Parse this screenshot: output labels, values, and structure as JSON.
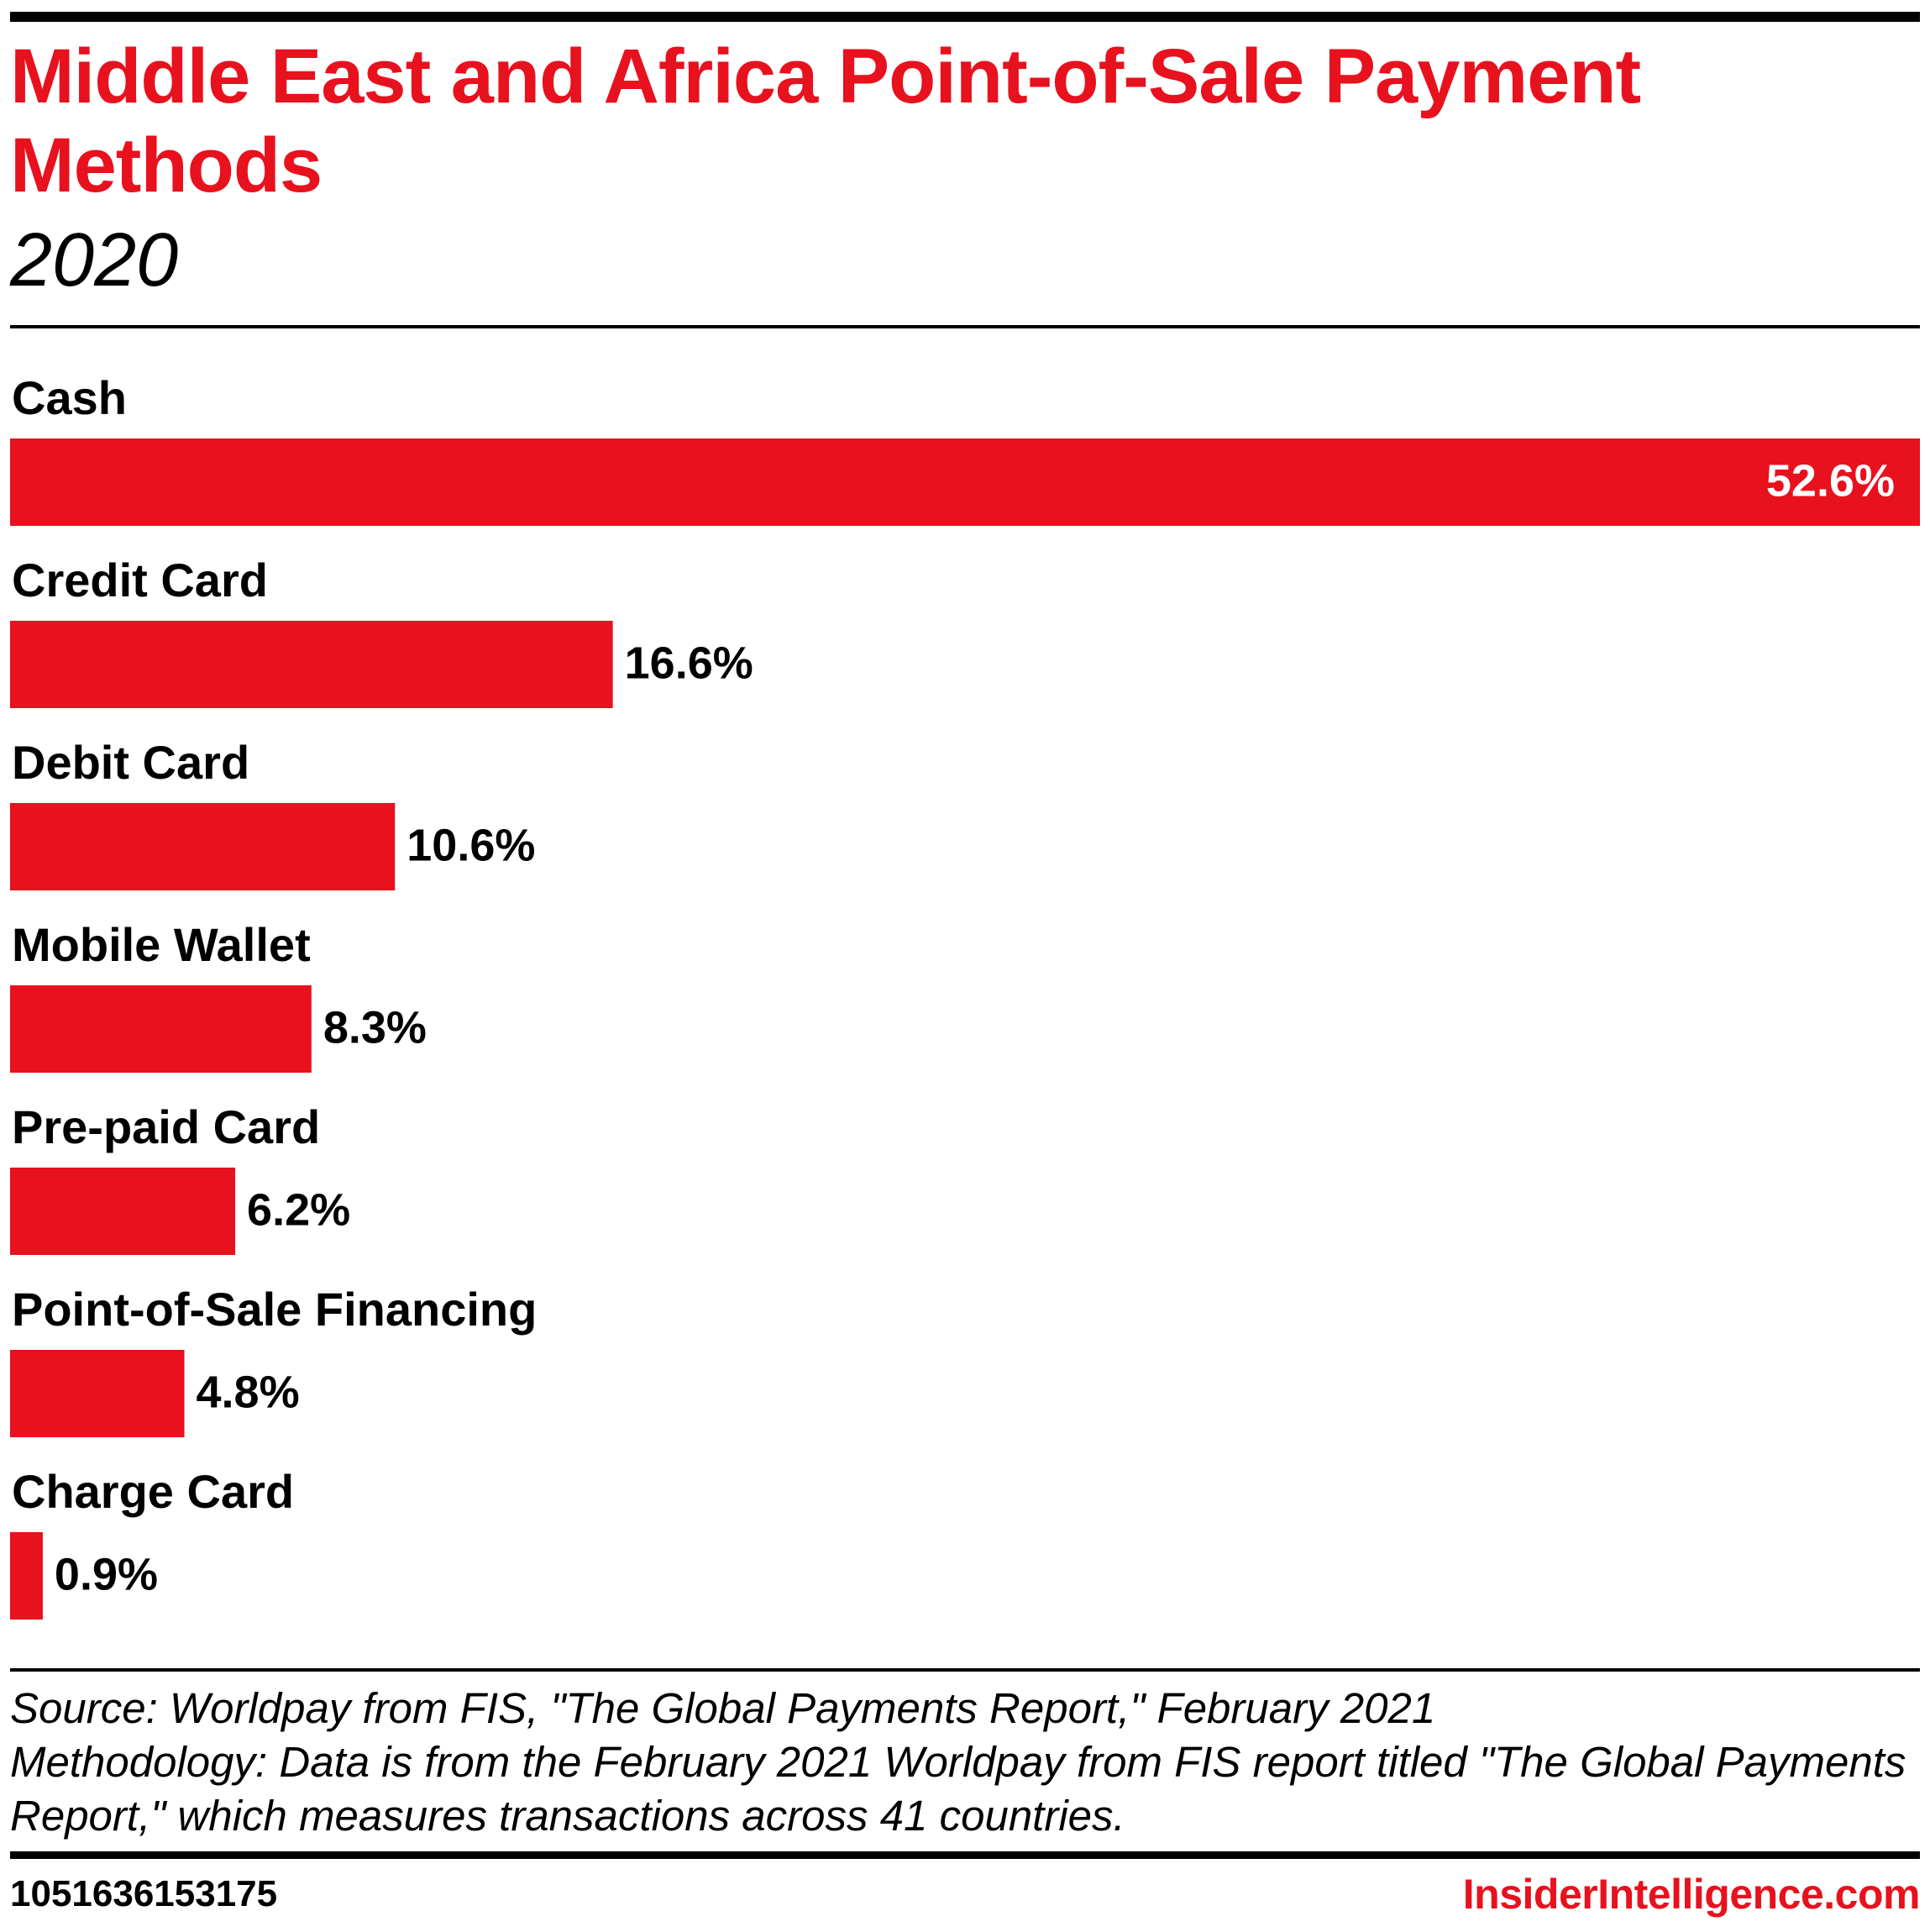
{
  "header": {
    "title": "Middle East and Africa Point-of-Sale Payment Methods",
    "subtitle": "2020"
  },
  "chart_data": {
    "type": "bar",
    "orientation": "horizontal",
    "categories": [
      "Cash",
      "Credit Card",
      "Debit Card",
      "Mobile Wallet",
      "Pre-paid Card",
      "Point-of-Sale Financing",
      "Charge Card"
    ],
    "values": [
      52.6,
      16.6,
      10.6,
      8.3,
      6.2,
      4.8,
      0.9
    ],
    "value_labels": [
      "52.6%",
      "16.6%",
      "10.6%",
      "8.3%",
      "6.2%",
      "4.8%",
      "0.9%"
    ],
    "unit": "%",
    "bar_color": "#e8111e",
    "grid": false,
    "legend": "none",
    "xlim": [
      0,
      52.6
    ]
  },
  "footer": {
    "source": "Source: Worldpay from FIS, \"The Global Payments Report,\" February 2021",
    "methodology": "Methodology: Data is from the February 2021 Worldpay from FIS report titled \"The Global Payments Report,\" which measures transactions across 41 countries.",
    "chart_id": "1051636153175",
    "brand": "InsiderIntelligence.com"
  },
  "colors": {
    "accent": "#e8111e",
    "text": "#000000",
    "background": "#ffffff"
  }
}
